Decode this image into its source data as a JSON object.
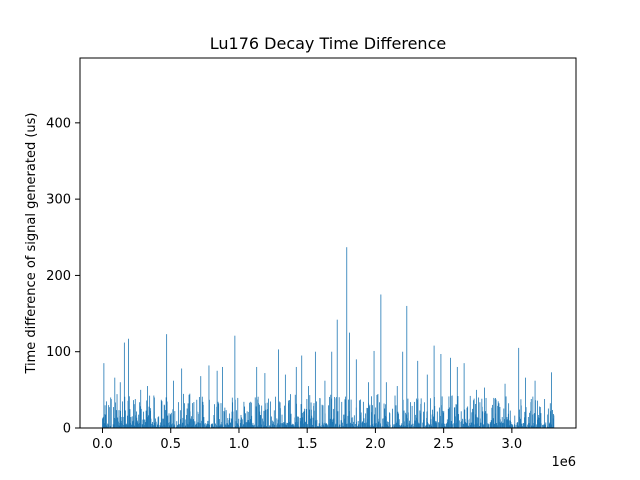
{
  "chart_data": {
    "type": "bar",
    "title": "Lu176 Decay Time Difference",
    "xlabel": "",
    "ylabel": "Time difference of signal generated (us)",
    "x_offset_text": "1e6",
    "xlim": [
      -0.165,
      3.47
    ],
    "ylim": [
      0,
      485
    ],
    "x_ticks": [
      0.0,
      0.5,
      1.0,
      1.5,
      2.0,
      2.5,
      3.0
    ],
    "x_tick_labels": [
      "0.0",
      "0.5",
      "1.0",
      "1.5",
      "2.0",
      "2.5",
      "3.0"
    ],
    "y_ticks": [
      0,
      100,
      200,
      300,
      400
    ],
    "y_tick_labels": [
      "0",
      "100",
      "200",
      "300",
      "400"
    ],
    "x_range": [
      0.0,
      3.31
    ],
    "bar_color": "#1f77b4",
    "grid": false,
    "legend": "none",
    "series": [
      {
        "points": [
          [
            0.01,
            85
          ],
          [
            0.06,
            40
          ],
          [
            0.09,
            66
          ],
          [
            0.13,
            60
          ],
          [
            0.16,
            112
          ],
          [
            0.19,
            117
          ],
          [
            0.24,
            38
          ],
          [
            0.28,
            50
          ],
          [
            0.33,
            55
          ],
          [
            0.38,
            40
          ],
          [
            0.47,
            123
          ],
          [
            0.52,
            62
          ],
          [
            0.58,
            78
          ],
          [
            0.64,
            45
          ],
          [
            0.72,
            68
          ],
          [
            0.78,
            82
          ],
          [
            0.84,
            75
          ],
          [
            0.88,
            80
          ],
          [
            0.97,
            121
          ],
          [
            1.04,
            28
          ],
          [
            1.13,
            80
          ],
          [
            1.19,
            72
          ],
          [
            1.29,
            103
          ],
          [
            1.34,
            70
          ],
          [
            1.42,
            80
          ],
          [
            1.46,
            95
          ],
          [
            1.51,
            55
          ],
          [
            1.56,
            100
          ],
          [
            1.63,
            62
          ],
          [
            1.68,
            100
          ],
          [
            1.72,
            142
          ],
          [
            1.79,
            237
          ],
          [
            1.81,
            125
          ],
          [
            1.86,
            90
          ],
          [
            1.95,
            60
          ],
          [
            1.99,
            101
          ],
          [
            2.04,
            175
          ],
          [
            2.08,
            60
          ],
          [
            2.16,
            55
          ],
          [
            2.2,
            100
          ],
          [
            2.23,
            160
          ],
          [
            2.31,
            88
          ],
          [
            2.38,
            70
          ],
          [
            2.43,
            108
          ],
          [
            2.48,
            97
          ],
          [
            2.55,
            92
          ],
          [
            2.6,
            80
          ],
          [
            2.65,
            85
          ],
          [
            2.74,
            50
          ],
          [
            2.8,
            53
          ],
          [
            2.9,
            35
          ],
          [
            2.95,
            58
          ],
          [
            3.05,
            105
          ],
          [
            3.1,
            66
          ],
          [
            3.17,
            62
          ],
          [
            3.24,
            38
          ],
          [
            3.29,
            73
          ]
        ]
      }
    ]
  }
}
